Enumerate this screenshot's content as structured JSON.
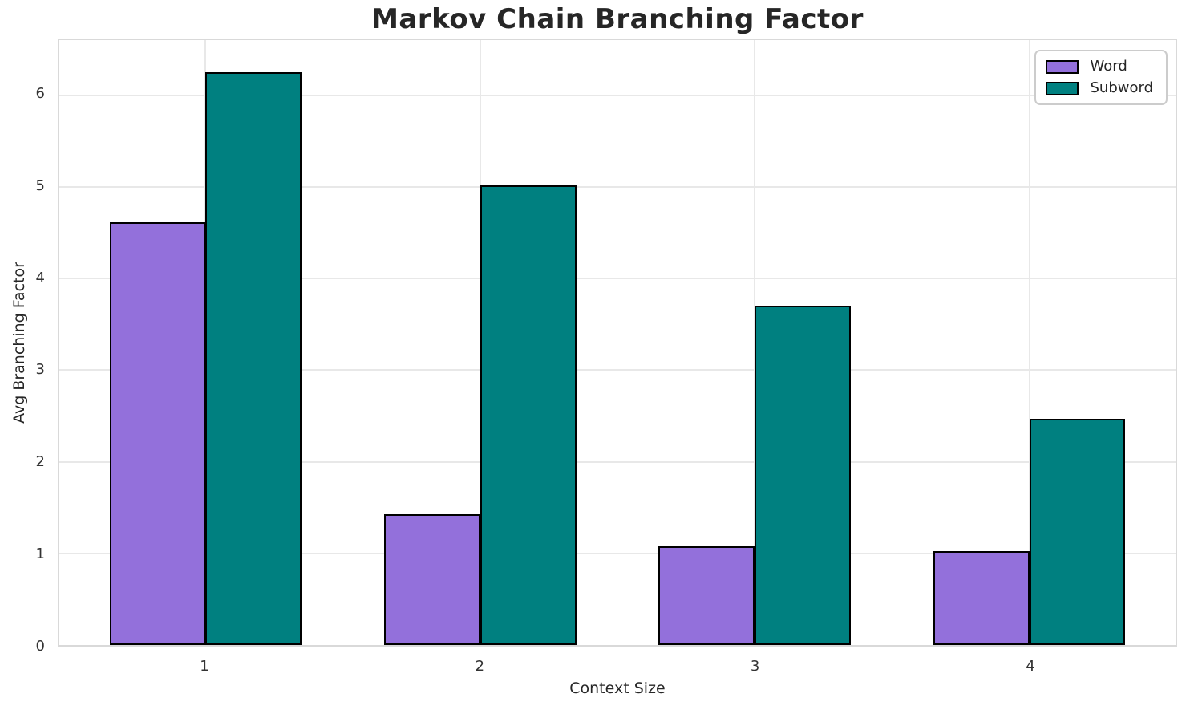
{
  "chart_data": {
    "type": "bar",
    "title": "Markov Chain Branching Factor",
    "xlabel": "Context Size",
    "ylabel": "Avg Branching Factor",
    "categories": [
      "1",
      "2",
      "3",
      "4"
    ],
    "series": [
      {
        "name": "Word",
        "color": "#9370DB",
        "values": [
          4.61,
          1.43,
          1.08,
          1.02
        ]
      },
      {
        "name": "Subword",
        "color": "#008080",
        "values": [
          6.25,
          5.02,
          3.7,
          2.47
        ]
      }
    ],
    "bar_width": 0.35,
    "bar_edge_color": "#000000",
    "ylim": [
      0,
      6.6
    ],
    "yticks": [
      0,
      1,
      2,
      3,
      4,
      5,
      6
    ],
    "xlim": [
      0.467,
      4.533
    ],
    "grid": "on",
    "grid_color": "#e8e8e8",
    "spine_color": "#d9d9d9",
    "legend_position": "upper right",
    "legend_entries": [
      "Word",
      "Subword"
    ]
  }
}
